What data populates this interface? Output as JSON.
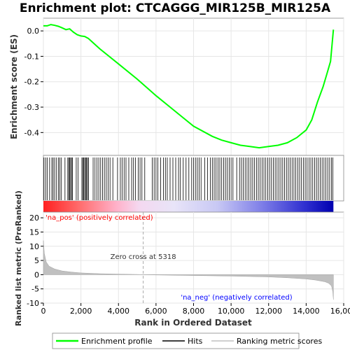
{
  "chart_data": {
    "type": "line",
    "title": "Enrichment plot: CTCAGGG_MIR125B_MIR125A",
    "es_panel": {
      "ylabel": "Enrichment score (ES)",
      "ylim": [
        -0.49,
        0.05
      ],
      "yticks": [
        "0.0",
        "-0.1",
        "-0.2",
        "-0.3",
        "-0.4"
      ],
      "ytick_values": [
        0.0,
        -0.1,
        -0.2,
        -0.3,
        -0.4
      ],
      "series": [
        {
          "name": "Enrichment profile",
          "color": "#00ff00",
          "x": [
            0,
            200,
            400,
            600,
            800,
            1000,
            1200,
            1400,
            1600,
            1800,
            2000,
            2200,
            2400,
            3000,
            4000,
            5000,
            6000,
            7000,
            8000,
            9000,
            9500,
            10000,
            10500,
            11000,
            11500,
            12000,
            12500,
            13000,
            13500,
            14000,
            14300,
            14600,
            14900,
            15100,
            15300,
            15450
          ],
          "y": [
            0.02,
            0.02,
            0.025,
            0.022,
            0.018,
            0.012,
            0.005,
            0.008,
            -0.005,
            -0.015,
            -0.02,
            -0.022,
            -0.03,
            -0.07,
            -0.13,
            -0.19,
            -0.255,
            -0.315,
            -0.375,
            -0.415,
            -0.43,
            -0.44,
            -0.45,
            -0.455,
            -0.46,
            -0.455,
            -0.45,
            -0.44,
            -0.42,
            -0.39,
            -0.35,
            -0.28,
            -0.22,
            -0.17,
            -0.12,
            0.005
          ]
        }
      ]
    },
    "hits_panel": {
      "name": "Hits",
      "hit_ranks": [
        30,
        120,
        210,
        330,
        450,
        520,
        600,
        700,
        800,
        880,
        960,
        1150,
        1300,
        1350,
        1400,
        1450,
        1500,
        1550,
        1750,
        1850,
        2050,
        2100,
        2150,
        2200,
        2250,
        2300,
        2350,
        2400,
        2650,
        2750,
        2850,
        2950,
        3050,
        3150,
        3250,
        3350,
        3450,
        3550,
        3700,
        3950,
        4100,
        4200,
        4300,
        4400,
        4550,
        4700,
        4800,
        4900,
        5050,
        5150,
        5250,
        5400,
        5800,
        5900,
        6000,
        6100,
        6250,
        6400,
        6500,
        6600,
        6750,
        6900,
        7050,
        7200,
        7300,
        7450,
        7600,
        7750,
        7900,
        8000,
        8100,
        8200,
        8300,
        8400,
        8600,
        8750,
        8900,
        9000,
        9100,
        9200,
        9300,
        9400,
        9500,
        9600,
        9700,
        9800,
        9900,
        10000,
        10100,
        10300,
        10450,
        10550,
        10650,
        10750,
        10850,
        10950,
        11050,
        11150,
        11250,
        11350,
        11450,
        11550,
        11650,
        11750,
        11850,
        11950,
        12050,
        12150,
        12250,
        12350,
        12450,
        12550,
        12650,
        12750,
        12850,
        12950,
        13050,
        13150,
        13250,
        13350,
        13450,
        13550,
        13650,
        13750,
        13850,
        13950,
        14050,
        14150,
        14250,
        14350,
        14450,
        14550,
        14650,
        14750,
        14850,
        14950,
        15050,
        15150,
        15250,
        15350,
        15420
      ]
    },
    "metric_panel": {
      "name": "Ranking metric scores",
      "ylabel": "Ranked list metric (PreRanked)",
      "ylim": [
        -10,
        22
      ],
      "yticks": [
        "20",
        "15",
        "10",
        "5",
        "0",
        "-5",
        "-10"
      ],
      "ytick_values": [
        20,
        15,
        10,
        5,
        0,
        -5,
        -10
      ],
      "x": [
        0,
        50,
        150,
        300,
        600,
        1000,
        1500,
        2000,
        3000,
        4000,
        5000,
        5318,
        6000,
        8000,
        10000,
        12000,
        13000,
        14000,
        14500,
        15000,
        15200,
        15350,
        15420,
        15450
      ],
      "y": [
        12,
        7.5,
        4.5,
        3,
        2,
        1.3,
        0.9,
        0.6,
        0.35,
        0.2,
        0.08,
        0,
        -0.1,
        -0.3,
        -0.5,
        -0.8,
        -1.1,
        -1.5,
        -1.9,
        -2.5,
        -3,
        -4,
        -6,
        -8.8
      ],
      "zero_cross_label": "Zero cross at 5318",
      "zero_cross": 5318,
      "pos_label": "'na_pos' (positively correlated)",
      "neg_label": "'na_neg' (negatively correlated)"
    },
    "xlabel": "Rank in Ordered Dataset",
    "xlim": [
      0,
      16000
    ],
    "xticks": [
      "0",
      "2,000",
      "4,000",
      "6,000",
      "8,000",
      "10,000",
      "12,000",
      "14,000",
      "16,000"
    ],
    "xtick_values": [
      0,
      2000,
      4000,
      6000,
      8000,
      10000,
      12000,
      14000,
      16000
    ],
    "n_ranks": 15450,
    "legend": {
      "placement": "bottom",
      "items": [
        {
          "label": "Enrichment profile",
          "color": "#00ff00"
        },
        {
          "label": "Hits",
          "color": "#000000"
        },
        {
          "label": "Ranking metric scores",
          "color": "#c0c0c0"
        }
      ]
    },
    "colors": {
      "profile": "#00ff00",
      "pos_text": "#ff0000",
      "neg_text": "#0000ff",
      "fill": "#c0c0c0"
    }
  }
}
